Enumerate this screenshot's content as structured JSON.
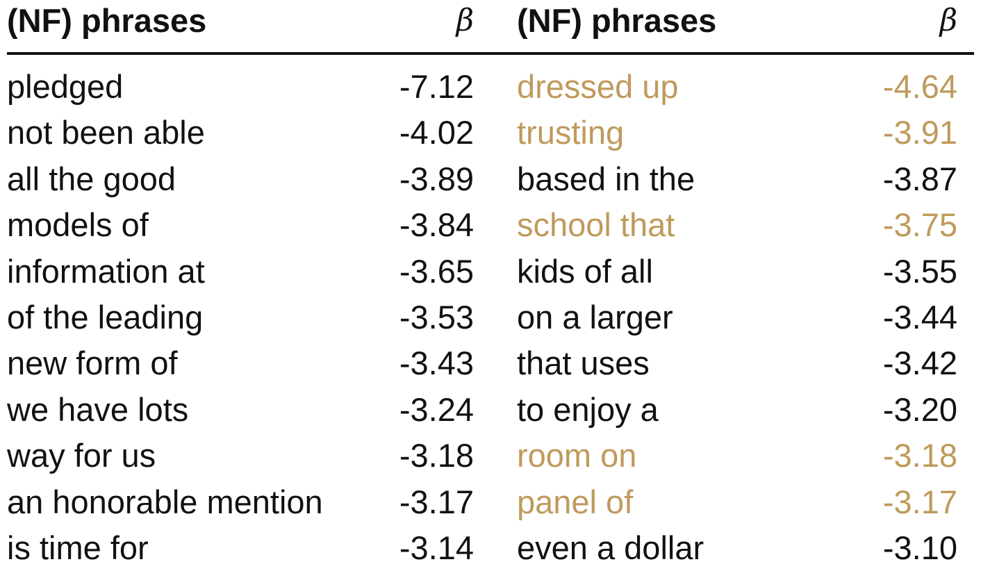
{
  "header": {
    "phrases_label": "(NF) phrases",
    "beta_label": "β"
  },
  "colors": {
    "text": "#111111",
    "highlight": "#bf9a5c"
  },
  "left": [
    {
      "phrase": "pledged",
      "beta": "-7.12",
      "highlight": false
    },
    {
      "phrase": "not been able",
      "beta": "-4.02",
      "highlight": false
    },
    {
      "phrase": "all the good",
      "beta": "-3.89",
      "highlight": false
    },
    {
      "phrase": "models of",
      "beta": "-3.84",
      "highlight": false
    },
    {
      "phrase": "information at",
      "beta": "-3.65",
      "highlight": false
    },
    {
      "phrase": "of the leading",
      "beta": "-3.53",
      "highlight": false
    },
    {
      "phrase": "new form of",
      "beta": "-3.43",
      "highlight": false
    },
    {
      "phrase": "we have lots",
      "beta": "-3.24",
      "highlight": false
    },
    {
      "phrase": "way for us",
      "beta": "-3.18",
      "highlight": false
    },
    {
      "phrase": "an honorable mention",
      "beta": "-3.17",
      "highlight": false
    },
    {
      "phrase": "is time for",
      "beta": "-3.14",
      "highlight": false
    }
  ],
  "right": [
    {
      "phrase": "dressed up",
      "beta": "-4.64",
      "highlight": true
    },
    {
      "phrase": "trusting",
      "beta": "-3.91",
      "highlight": true
    },
    {
      "phrase": "based in the",
      "beta": "-3.87",
      "highlight": false
    },
    {
      "phrase": "school that",
      "beta": "-3.75",
      "highlight": true
    },
    {
      "phrase": "kids of all",
      "beta": "-3.55",
      "highlight": false
    },
    {
      "phrase": "on a larger",
      "beta": "-3.44",
      "highlight": false
    },
    {
      "phrase": "that uses",
      "beta": "-3.42",
      "highlight": false
    },
    {
      "phrase": "to enjoy a",
      "beta": "-3.20",
      "highlight": false
    },
    {
      "phrase": "room on",
      "beta": "-3.18",
      "highlight": true
    },
    {
      "phrase": "panel of",
      "beta": "-3.17",
      "highlight": true
    },
    {
      "phrase": "even a dollar",
      "beta": "-3.10",
      "highlight": false
    }
  ]
}
